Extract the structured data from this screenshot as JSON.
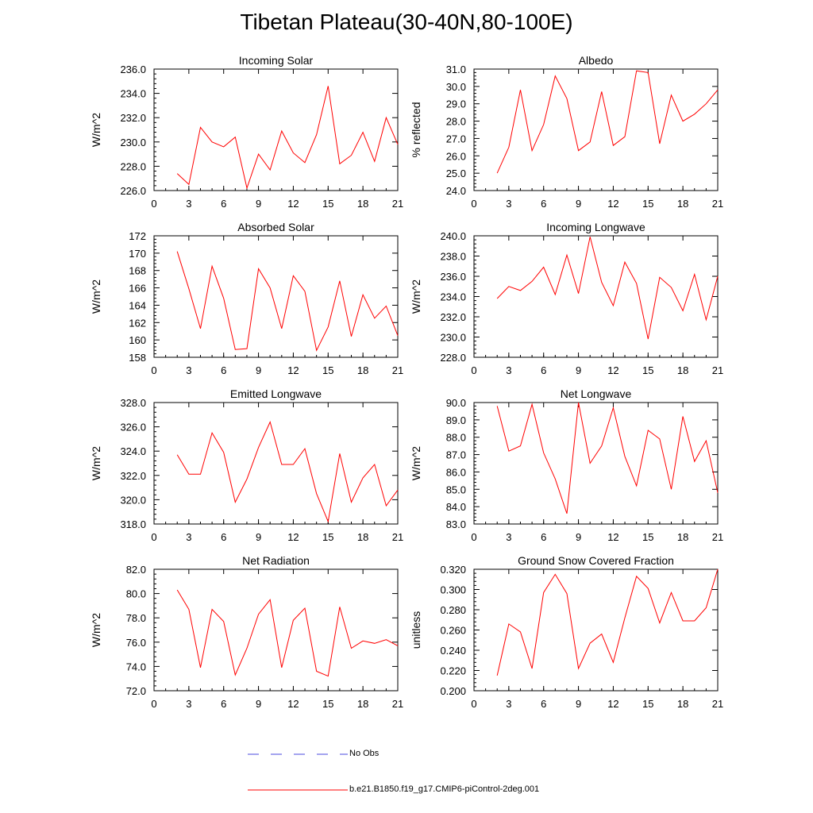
{
  "figure_title": "Tibetan Plateau(30-40N,80-100E)",
  "colors": {
    "model": "#ff0000",
    "obs": "#4a4adf",
    "axis": "#000000"
  },
  "legend": {
    "obs_label": "No Obs",
    "model_label": "b.e21.B1850.f19_g17.CMIP6-piControl-2deg.001"
  },
  "chart_data": [
    {
      "type": "line",
      "title": "Incoming Solar",
      "ylabel": "W/m^2",
      "xlabel": "",
      "xlim": [
        0,
        21
      ],
      "xticks": [
        "0",
        "3",
        "6",
        "9",
        "12",
        "15",
        "18",
        "21"
      ],
      "ylim": [
        226,
        236
      ],
      "yticks": [
        "226.0",
        "228.0",
        "230.0",
        "232.0",
        "234.0",
        "236.0"
      ],
      "x": [
        2,
        3,
        4,
        5,
        6,
        7,
        8,
        9,
        10,
        11,
        12,
        13,
        14,
        15,
        16,
        17,
        18,
        19,
        20,
        21
      ],
      "series": [
        {
          "name": "b.e21.B1850.f19_g17.CMIP6-piControl-2deg.001",
          "values": [
            227.4,
            226.5,
            231.2,
            230.0,
            229.6,
            230.4,
            226.2,
            229.0,
            227.7,
            230.9,
            229.1,
            228.3,
            230.6,
            234.6,
            228.2,
            228.9,
            230.8,
            228.4,
            232.0,
            229.8
          ]
        }
      ]
    },
    {
      "type": "line",
      "title": "Albedo",
      "ylabel": "% reflected",
      "xlabel": "",
      "xlim": [
        0,
        21
      ],
      "xticks": [
        "0",
        "3",
        "6",
        "9",
        "12",
        "15",
        "18",
        "21"
      ],
      "ylim": [
        24,
        31
      ],
      "yticks": [
        "24.0",
        "25.0",
        "26.0",
        "27.0",
        "28.0",
        "29.0",
        "30.0",
        "31.0"
      ],
      "x": [
        2,
        3,
        4,
        5,
        6,
        7,
        8,
        9,
        10,
        11,
        12,
        13,
        14,
        15,
        16,
        17,
        18,
        19,
        20,
        21
      ],
      "series": [
        {
          "name": "b.e21.B1850.f19_g17.CMIP6-piControl-2deg.001",
          "values": [
            25.0,
            26.5,
            29.8,
            26.3,
            27.8,
            30.6,
            29.3,
            26.3,
            26.8,
            29.7,
            26.6,
            27.1,
            30.9,
            30.8,
            26.7,
            29.5,
            28.0,
            28.4,
            29.0,
            29.8
          ]
        }
      ]
    },
    {
      "type": "line",
      "title": "Absorbed Solar",
      "ylabel": "W/m^2",
      "xlabel": "",
      "xlim": [
        0,
        21
      ],
      "xticks": [
        "0",
        "3",
        "6",
        "9",
        "12",
        "15",
        "18",
        "21"
      ],
      "ylim": [
        158,
        172
      ],
      "yticks": [
        "158",
        "160",
        "162",
        "164",
        "166",
        "168",
        "170",
        "172"
      ],
      "x": [
        2,
        3,
        4,
        5,
        6,
        7,
        8,
        9,
        10,
        11,
        12,
        13,
        14,
        15,
        16,
        17,
        18,
        19,
        20,
        21
      ],
      "series": [
        {
          "name": "b.e21.B1850.f19_g17.CMIP6-piControl-2deg.001",
          "values": [
            170.2,
            165.9,
            161.3,
            168.5,
            164.8,
            158.9,
            159.0,
            168.2,
            166.0,
            161.3,
            167.4,
            165.6,
            158.8,
            161.5,
            166.8,
            160.4,
            165.2,
            162.5,
            163.9,
            160.5
          ]
        }
      ]
    },
    {
      "type": "line",
      "title": "Incoming Longwave",
      "ylabel": "W/m^2",
      "xlabel": "",
      "xlim": [
        0,
        21
      ],
      "xticks": [
        "0",
        "3",
        "6",
        "9",
        "12",
        "15",
        "18",
        "21"
      ],
      "ylim": [
        228,
        240
      ],
      "yticks": [
        "228.0",
        "230.0",
        "232.0",
        "234.0",
        "236.0",
        "238.0",
        "240.0"
      ],
      "x": [
        2,
        3,
        4,
        5,
        6,
        7,
        8,
        9,
        10,
        11,
        12,
        13,
        14,
        15,
        16,
        17,
        18,
        19,
        20,
        21
      ],
      "series": [
        {
          "name": "b.e21.B1850.f19_g17.CMIP6-piControl-2deg.001",
          "values": [
            233.8,
            235.0,
            234.6,
            235.5,
            236.9,
            234.2,
            238.1,
            234.3,
            239.9,
            235.4,
            233.1,
            237.4,
            235.3,
            229.8,
            235.9,
            234.9,
            232.6,
            236.2,
            231.7,
            236.0
          ]
        }
      ]
    },
    {
      "type": "line",
      "title": "Emitted Longwave",
      "ylabel": "W/m^2",
      "xlabel": "",
      "xlim": [
        0,
        21
      ],
      "xticks": [
        "0",
        "3",
        "6",
        "9",
        "12",
        "15",
        "18",
        "21"
      ],
      "ylim": [
        318,
        328
      ],
      "yticks": [
        "318.0",
        "320.0",
        "322.0",
        "324.0",
        "326.0",
        "328.0"
      ],
      "x": [
        2,
        3,
        4,
        5,
        6,
        7,
        8,
        9,
        10,
        11,
        12,
        13,
        14,
        15,
        16,
        17,
        18,
        19,
        20,
        21
      ],
      "series": [
        {
          "name": "b.e21.B1850.f19_g17.CMIP6-piControl-2deg.001",
          "values": [
            323.7,
            322.1,
            322.1,
            325.5,
            323.9,
            319.8,
            321.7,
            324.3,
            326.4,
            322.9,
            322.9,
            324.2,
            320.5,
            318.2,
            323.8,
            319.8,
            321.8,
            322.9,
            319.5,
            320.8
          ]
        }
      ]
    },
    {
      "type": "line",
      "title": "Net Longwave",
      "ylabel": "W/m^2",
      "xlabel": "",
      "xlim": [
        0,
        21
      ],
      "xticks": [
        "0",
        "3",
        "6",
        "9",
        "12",
        "15",
        "18",
        "21"
      ],
      "ylim": [
        83,
        90
      ],
      "yticks": [
        "83.0",
        "84.0",
        "85.0",
        "86.0",
        "87.0",
        "88.0",
        "89.0",
        "90.0"
      ],
      "x": [
        2,
        3,
        4,
        5,
        6,
        7,
        8,
        9,
        10,
        11,
        12,
        13,
        14,
        15,
        16,
        17,
        18,
        19,
        20,
        21
      ],
      "series": [
        {
          "name": "b.e21.B1850.f19_g17.CMIP6-piControl-2deg.001",
          "values": [
            89.8,
            87.2,
            87.5,
            89.9,
            87.1,
            85.6,
            83.6,
            90.0,
            86.5,
            87.5,
            89.7,
            86.9,
            85.2,
            88.4,
            87.9,
            85.0,
            89.2,
            86.6,
            87.8,
            84.8
          ]
        }
      ]
    },
    {
      "type": "line",
      "title": "Net Radiation",
      "ylabel": "W/m^2",
      "xlabel": "",
      "xlim": [
        0,
        21
      ],
      "xticks": [
        "0",
        "3",
        "6",
        "9",
        "12",
        "15",
        "18",
        "21"
      ],
      "ylim": [
        72,
        82
      ],
      "yticks": [
        "72.0",
        "74.0",
        "76.0",
        "78.0",
        "80.0",
        "82.0"
      ],
      "x": [
        2,
        3,
        4,
        5,
        6,
        7,
        8,
        9,
        10,
        11,
        12,
        13,
        14,
        15,
        16,
        17,
        18,
        19,
        20,
        21
      ],
      "series": [
        {
          "name": "b.e21.B1850.f19_g17.CMIP6-piControl-2deg.001",
          "values": [
            80.3,
            78.7,
            73.9,
            78.7,
            77.7,
            73.3,
            75.5,
            78.3,
            79.5,
            73.9,
            77.8,
            78.8,
            73.6,
            73.2,
            78.9,
            75.5,
            76.1,
            75.9,
            76.2,
            75.7
          ]
        }
      ]
    },
    {
      "type": "line",
      "title": "Ground Snow Covered Fraction",
      "ylabel": "unitless",
      "xlabel": "",
      "xlim": [
        0,
        21
      ],
      "xticks": [
        "0",
        "3",
        "6",
        "9",
        "12",
        "15",
        "18",
        "21"
      ],
      "ylim": [
        0.2,
        0.32
      ],
      "yticks": [
        "0.200",
        "0.220",
        "0.240",
        "0.260",
        "0.280",
        "0.300",
        "0.320"
      ],
      "x": [
        2,
        3,
        4,
        5,
        6,
        7,
        8,
        9,
        10,
        11,
        12,
        13,
        14,
        15,
        16,
        17,
        18,
        19,
        20,
        21
      ],
      "series": [
        {
          "name": "b.e21.B1850.f19_g17.CMIP6-piControl-2deg.001",
          "values": [
            0.215,
            0.266,
            0.258,
            0.222,
            0.297,
            0.315,
            0.296,
            0.222,
            0.247,
            0.256,
            0.228,
            0.272,
            0.313,
            0.301,
            0.267,
            0.297,
            0.269,
            0.269,
            0.282,
            0.32
          ]
        }
      ]
    }
  ]
}
